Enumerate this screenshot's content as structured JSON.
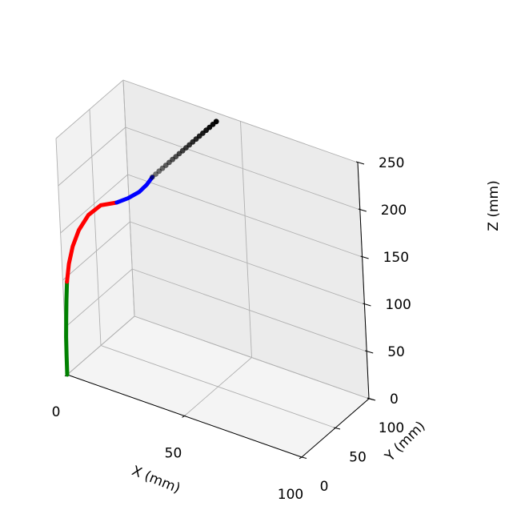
{
  "chart_data": {
    "type": "line",
    "projection": "3d",
    "title": "",
    "xlabel": "X (mm)",
    "ylabel": "Y (mm)",
    "zlabel": "Z (mm)",
    "xlim": [
      0,
      100
    ],
    "ylim": [
      0,
      100
    ],
    "zlim": [
      0,
      250
    ],
    "grid": true,
    "x_ticks": [
      {
        "value": 0,
        "label": "0"
      },
      {
        "value": 50,
        "label": "50"
      },
      {
        "value": 100,
        "label": "100"
      }
    ],
    "y_ticks": [
      {
        "value": 0,
        "label": "0"
      },
      {
        "value": 50,
        "label": "50"
      },
      {
        "value": 100,
        "label": "100"
      }
    ],
    "z_ticks": [
      {
        "value": 0,
        "label": "0"
      },
      {
        "value": 50,
        "label": "50"
      },
      {
        "value": 100,
        "label": "100"
      },
      {
        "value": 150,
        "label": "150"
      },
      {
        "value": 200,
        "label": "200"
      },
      {
        "value": 250,
        "label": "250"
      }
    ],
    "series": [
      {
        "color": "#008000",
        "style": "line",
        "points": [
          [
            0,
            0,
            0
          ],
          [
            0.1,
            0,
            20
          ],
          [
            0.3,
            0,
            40
          ],
          [
            0.7,
            0,
            60
          ],
          [
            1.2,
            0,
            80
          ],
          [
            1.8,
            0,
            100
          ]
        ]
      },
      {
        "color": "#ff0000",
        "style": "line",
        "points": [
          [
            1.8,
            0,
            100
          ],
          [
            3,
            0,
            120
          ],
          [
            5,
            0,
            140
          ],
          [
            8,
            0,
            160
          ],
          [
            12.5,
            0,
            180
          ],
          [
            18,
            0,
            195
          ],
          [
            25,
            0,
            204
          ]
        ]
      },
      {
        "color": "#0000ff",
        "style": "line",
        "points": [
          [
            25,
            0,
            204
          ],
          [
            30,
            0,
            213
          ],
          [
            35,
            0,
            224
          ],
          [
            38.5,
            0,
            235
          ],
          [
            41,
            0,
            245
          ]
        ]
      },
      {
        "color": "#000000",
        "style": "markers",
        "points": [
          [
            41,
            0,
            245
          ],
          [
            41,
            5,
            245
          ],
          [
            41,
            10,
            245
          ],
          [
            41,
            15,
            245
          ],
          [
            41,
            20,
            245
          ],
          [
            41,
            25,
            245
          ],
          [
            41,
            30,
            245
          ],
          [
            41,
            35,
            245
          ],
          [
            41,
            40,
            245
          ],
          [
            41,
            45,
            245
          ],
          [
            41,
            50,
            245
          ],
          [
            41,
            55,
            245
          ],
          [
            41,
            60,
            245
          ],
          [
            41,
            65,
            245
          ],
          [
            41,
            70,
            245
          ],
          [
            41,
            75,
            245
          ],
          [
            41,
            80,
            245
          ],
          [
            41,
            85,
            245
          ],
          [
            41,
            90,
            245
          ],
          [
            41,
            95,
            245
          ]
        ]
      }
    ]
  }
}
